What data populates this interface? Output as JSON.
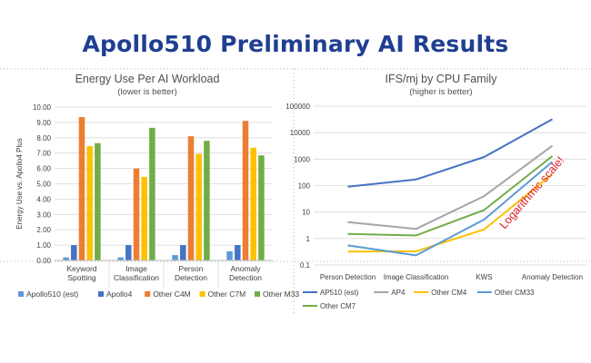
{
  "slide": {
    "title": "Apollo510 Preliminary AI Results"
  },
  "annotation": {
    "text": "Logarithmic scale!",
    "color": "#e01b24"
  },
  "chart_data": [
    {
      "type": "bar",
      "title": "Energy Use Per AI Workload",
      "subtitle": "(lower is better)",
      "xlabel": "",
      "ylabel": "Energy Use vs. Apollo4 Plus",
      "ylim": [
        0,
        10
      ],
      "yticks": [
        "0.00",
        "1.00",
        "2.00",
        "3.00",
        "4.00",
        "5.00",
        "6.00",
        "7.00",
        "8.00",
        "9.00",
        "10.00"
      ],
      "grid": true,
      "legend_position": "bottom",
      "categories": [
        [
          "Keyword",
          "Spotting"
        ],
        [
          "Image",
          "Classification"
        ],
        [
          "Person",
          "Detection"
        ],
        [
          "Anomaly",
          "Detection"
        ]
      ],
      "series": [
        {
          "name": "Apollo510 (est)",
          "color": "#5b9bd5",
          "values": [
            0.2,
            0.2,
            0.35,
            0.6
          ]
        },
        {
          "name": "Apollo4",
          "color": "#4472c4",
          "values": [
            1.0,
            1.0,
            1.0,
            1.0
          ]
        },
        {
          "name": "Other C4M",
          "color": "#ed7d31",
          "values": [
            9.35,
            6.0,
            8.1,
            9.1
          ]
        },
        {
          "name": "Other C7M",
          "color": "#ffc000",
          "values": [
            7.45,
            5.45,
            6.95,
            7.35
          ]
        },
        {
          "name": "Other M33",
          "color": "#70ad47",
          "values": [
            7.65,
            8.65,
            7.8,
            6.85
          ]
        }
      ]
    },
    {
      "type": "line",
      "title": "IFS/mj by CPU Family",
      "subtitle": "(higher is better)",
      "xlabel": "",
      "ylabel": "",
      "yscale": "log",
      "ylim": [
        0.1,
        100000
      ],
      "yticks": [
        "0.1",
        "1",
        "10",
        "100",
        "1000",
        "10000",
        "100000"
      ],
      "grid": true,
      "legend_position": "bottom",
      "categories": [
        "Person Detection",
        "Image Classification",
        "KWS",
        "Anomaly Detection"
      ],
      "series": [
        {
          "name": "AP510 (est)",
          "color": "#4472c4",
          "values": [
            90,
            170,
            1200,
            32000
          ]
        },
        {
          "name": "AP4",
          "color": "#a5a5a5",
          "values": [
            4.2,
            2.3,
            40,
            3200
          ]
        },
        {
          "name": "Other CM4",
          "color": "#ffc000",
          "values": [
            0.32,
            0.33,
            2.2,
            270
          ]
        },
        {
          "name": "Other CM33",
          "color": "#5b9bd5",
          "values": [
            0.55,
            0.23,
            5.2,
            800
          ]
        },
        {
          "name": "Other CM7",
          "color": "#70ad47",
          "values": [
            1.5,
            1.3,
            12,
            1300
          ]
        }
      ]
    }
  ]
}
